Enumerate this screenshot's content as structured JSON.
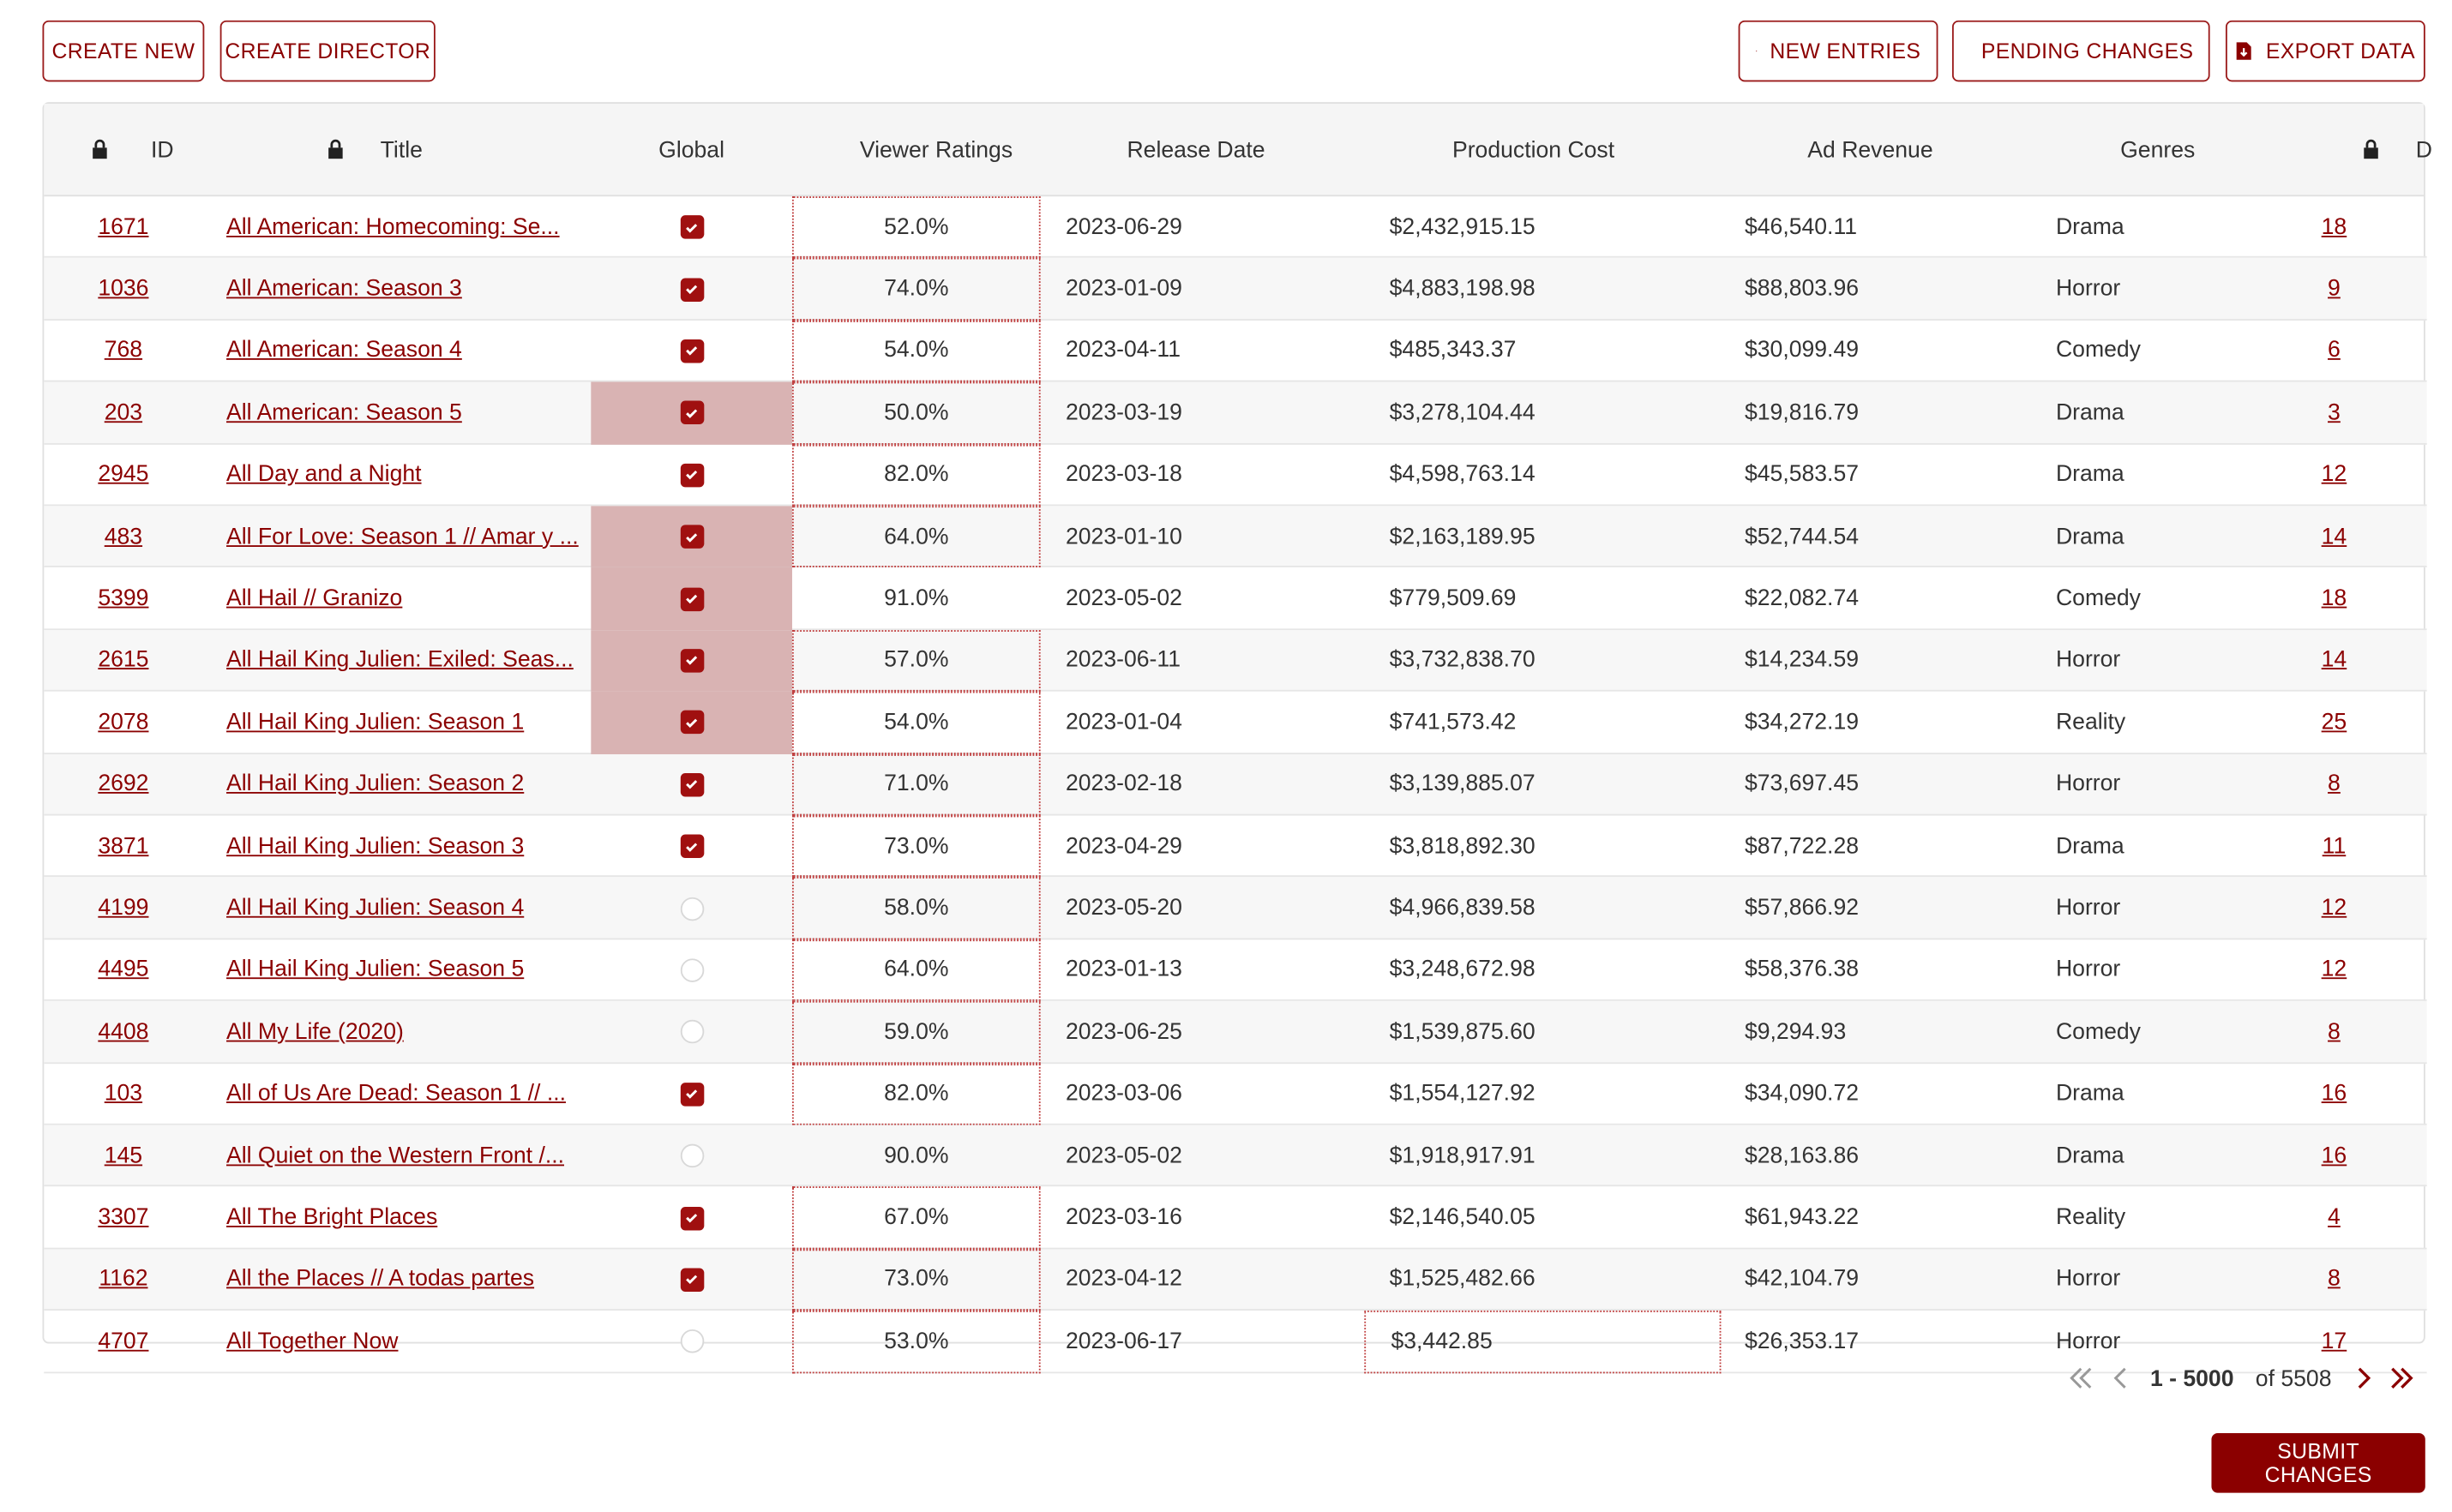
{
  "toolbar": {
    "create_new": "CREATE NEW",
    "create_director": "CREATE DIRECTOR",
    "new_entries": "NEW ENTRIES",
    "pending_changes": "PENDING CHANGES",
    "export_data": "EXPORT DATA"
  },
  "columns": {
    "id": "ID",
    "title": "Title",
    "global": "Global",
    "viewer_ratings": "Viewer Ratings",
    "release_date": "Release Date",
    "production_cost": "Production Cost",
    "ad_revenue": "Ad Revenue",
    "genres": "Genres",
    "director_partial": "D"
  },
  "rows": [
    {
      "id": "1671",
      "title": "All American: Homecoming: Se...",
      "global": true,
      "global_highlight": false,
      "rating": "52.0%",
      "rating_boxed": true,
      "date": "2023-06-29",
      "cost": "$2,432,915.15",
      "cost_boxed": false,
      "revenue": "$46,540.11",
      "genre": "Drama",
      "director": "18"
    },
    {
      "id": "1036",
      "title": "All American: Season 3",
      "global": true,
      "global_highlight": false,
      "rating": "74.0%",
      "rating_boxed": true,
      "date": "2023-01-09",
      "cost": "$4,883,198.98",
      "cost_boxed": false,
      "revenue": "$88,803.96",
      "genre": "Horror",
      "director": "9"
    },
    {
      "id": "768",
      "title": "All American: Season 4",
      "global": true,
      "global_highlight": false,
      "rating": "54.0%",
      "rating_boxed": true,
      "date": "2023-04-11",
      "cost": "$485,343.37",
      "cost_boxed": false,
      "revenue": "$30,099.49",
      "genre": "Comedy",
      "director": "6"
    },
    {
      "id": "203",
      "title": "All American: Season 5",
      "global": true,
      "global_highlight": true,
      "rating": "50.0%",
      "rating_boxed": true,
      "date": "2023-03-19",
      "cost": "$3,278,104.44",
      "cost_boxed": false,
      "revenue": "$19,816.79",
      "genre": "Drama",
      "director": "3"
    },
    {
      "id": "2945",
      "title": "All Day and a Night",
      "global": true,
      "global_highlight": false,
      "rating": "82.0%",
      "rating_boxed": true,
      "date": "2023-03-18",
      "cost": "$4,598,763.14",
      "cost_boxed": false,
      "revenue": "$45,583.57",
      "genre": "Drama",
      "director": "12"
    },
    {
      "id": "483",
      "title": "All For Love: Season 1 // Amar y ...",
      "global": true,
      "global_highlight": true,
      "rating": "64.0%",
      "rating_boxed": true,
      "date": "2023-01-10",
      "cost": "$2,163,189.95",
      "cost_boxed": false,
      "revenue": "$52,744.54",
      "genre": "Drama",
      "director": "14"
    },
    {
      "id": "5399",
      "title": "All Hail // Granizo",
      "global": true,
      "global_highlight": true,
      "rating": "91.0%",
      "rating_boxed": false,
      "date": "2023-05-02",
      "cost": "$779,509.69",
      "cost_boxed": false,
      "revenue": "$22,082.74",
      "genre": "Comedy",
      "director": "18"
    },
    {
      "id": "2615",
      "title": "All Hail King Julien: Exiled: Seas...",
      "global": true,
      "global_highlight": true,
      "rating": "57.0%",
      "rating_boxed": true,
      "date": "2023-06-11",
      "cost": "$3,732,838.70",
      "cost_boxed": false,
      "revenue": "$14,234.59",
      "genre": "Horror",
      "director": "14"
    },
    {
      "id": "2078",
      "title": "All Hail King Julien: Season 1",
      "global": true,
      "global_highlight": true,
      "rating": "54.0%",
      "rating_boxed": true,
      "date": "2023-01-04",
      "cost": "$741,573.42",
      "cost_boxed": false,
      "revenue": "$34,272.19",
      "genre": "Reality",
      "director": "25"
    },
    {
      "id": "2692",
      "title": "All Hail King Julien: Season 2",
      "global": true,
      "global_highlight": false,
      "rating": "71.0%",
      "rating_boxed": true,
      "date": "2023-02-18",
      "cost": "$3,139,885.07",
      "cost_boxed": false,
      "revenue": "$73,697.45",
      "genre": "Horror",
      "director": "8"
    },
    {
      "id": "3871",
      "title": "All Hail King Julien: Season 3",
      "global": true,
      "global_highlight": false,
      "rating": "73.0%",
      "rating_boxed": true,
      "date": "2023-04-29",
      "cost": "$3,818,892.30",
      "cost_boxed": false,
      "revenue": "$87,722.28",
      "genre": "Drama",
      "director": "11"
    },
    {
      "id": "4199",
      "title": "All Hail King Julien: Season 4",
      "global": false,
      "global_highlight": false,
      "rating": "58.0%",
      "rating_boxed": true,
      "date": "2023-05-20",
      "cost": "$4,966,839.58",
      "cost_boxed": false,
      "revenue": "$57,866.92",
      "genre": "Horror",
      "director": "12"
    },
    {
      "id": "4495",
      "title": "All Hail King Julien: Season 5",
      "global": false,
      "global_highlight": false,
      "rating": "64.0%",
      "rating_boxed": true,
      "date": "2023-01-13",
      "cost": "$3,248,672.98",
      "cost_boxed": false,
      "revenue": "$58,376.38",
      "genre": "Horror",
      "director": "12"
    },
    {
      "id": "4408",
      "title": "All My Life (2020)",
      "global": false,
      "global_highlight": false,
      "rating": "59.0%",
      "rating_boxed": true,
      "date": "2023-06-25",
      "cost": "$1,539,875.60",
      "cost_boxed": false,
      "revenue": "$9,294.93",
      "genre": "Comedy",
      "director": "8"
    },
    {
      "id": "103",
      "title": "All of Us Are Dead: Season 1 // ...",
      "global": true,
      "global_highlight": false,
      "rating": "82.0%",
      "rating_boxed": true,
      "date": "2023-03-06",
      "cost": "$1,554,127.92",
      "cost_boxed": false,
      "revenue": "$34,090.72",
      "genre": "Drama",
      "director": "16"
    },
    {
      "id": "145",
      "title": "All Quiet on the Western Front /...",
      "global": false,
      "global_highlight": false,
      "rating": "90.0%",
      "rating_boxed": false,
      "date": "2023-05-02",
      "cost": "$1,918,917.91",
      "cost_boxed": false,
      "revenue": "$28,163.86",
      "genre": "Drama",
      "director": "16"
    },
    {
      "id": "3307",
      "title": "All The Bright Places",
      "global": true,
      "global_highlight": false,
      "rating": "67.0%",
      "rating_boxed": true,
      "date": "2023-03-16",
      "cost": "$2,146,540.05",
      "cost_boxed": false,
      "revenue": "$61,943.22",
      "genre": "Reality",
      "director": "4"
    },
    {
      "id": "1162",
      "title": "All the Places // A todas partes",
      "global": true,
      "global_highlight": false,
      "rating": "73.0%",
      "rating_boxed": true,
      "date": "2023-04-12",
      "cost": "$1,525,482.66",
      "cost_boxed": false,
      "revenue": "$42,104.79",
      "genre": "Horror",
      "director": "8"
    },
    {
      "id": "4707",
      "title": "All Together Now",
      "global": false,
      "global_highlight": false,
      "rating": "53.0%",
      "rating_boxed": true,
      "date": "2023-06-17",
      "cost": "$3,442.85",
      "cost_boxed": true,
      "revenue": "$26,353.17",
      "genre": "Horror",
      "director": "17"
    }
  ],
  "pagination": {
    "range": "1 - 5000",
    "of_label": "of 5508"
  },
  "submit_label": "SUBMIT CHANGES",
  "colors": {
    "accent": "#8b0000",
    "checkbox": "#a01010",
    "highlight": "#d9b3b3"
  }
}
